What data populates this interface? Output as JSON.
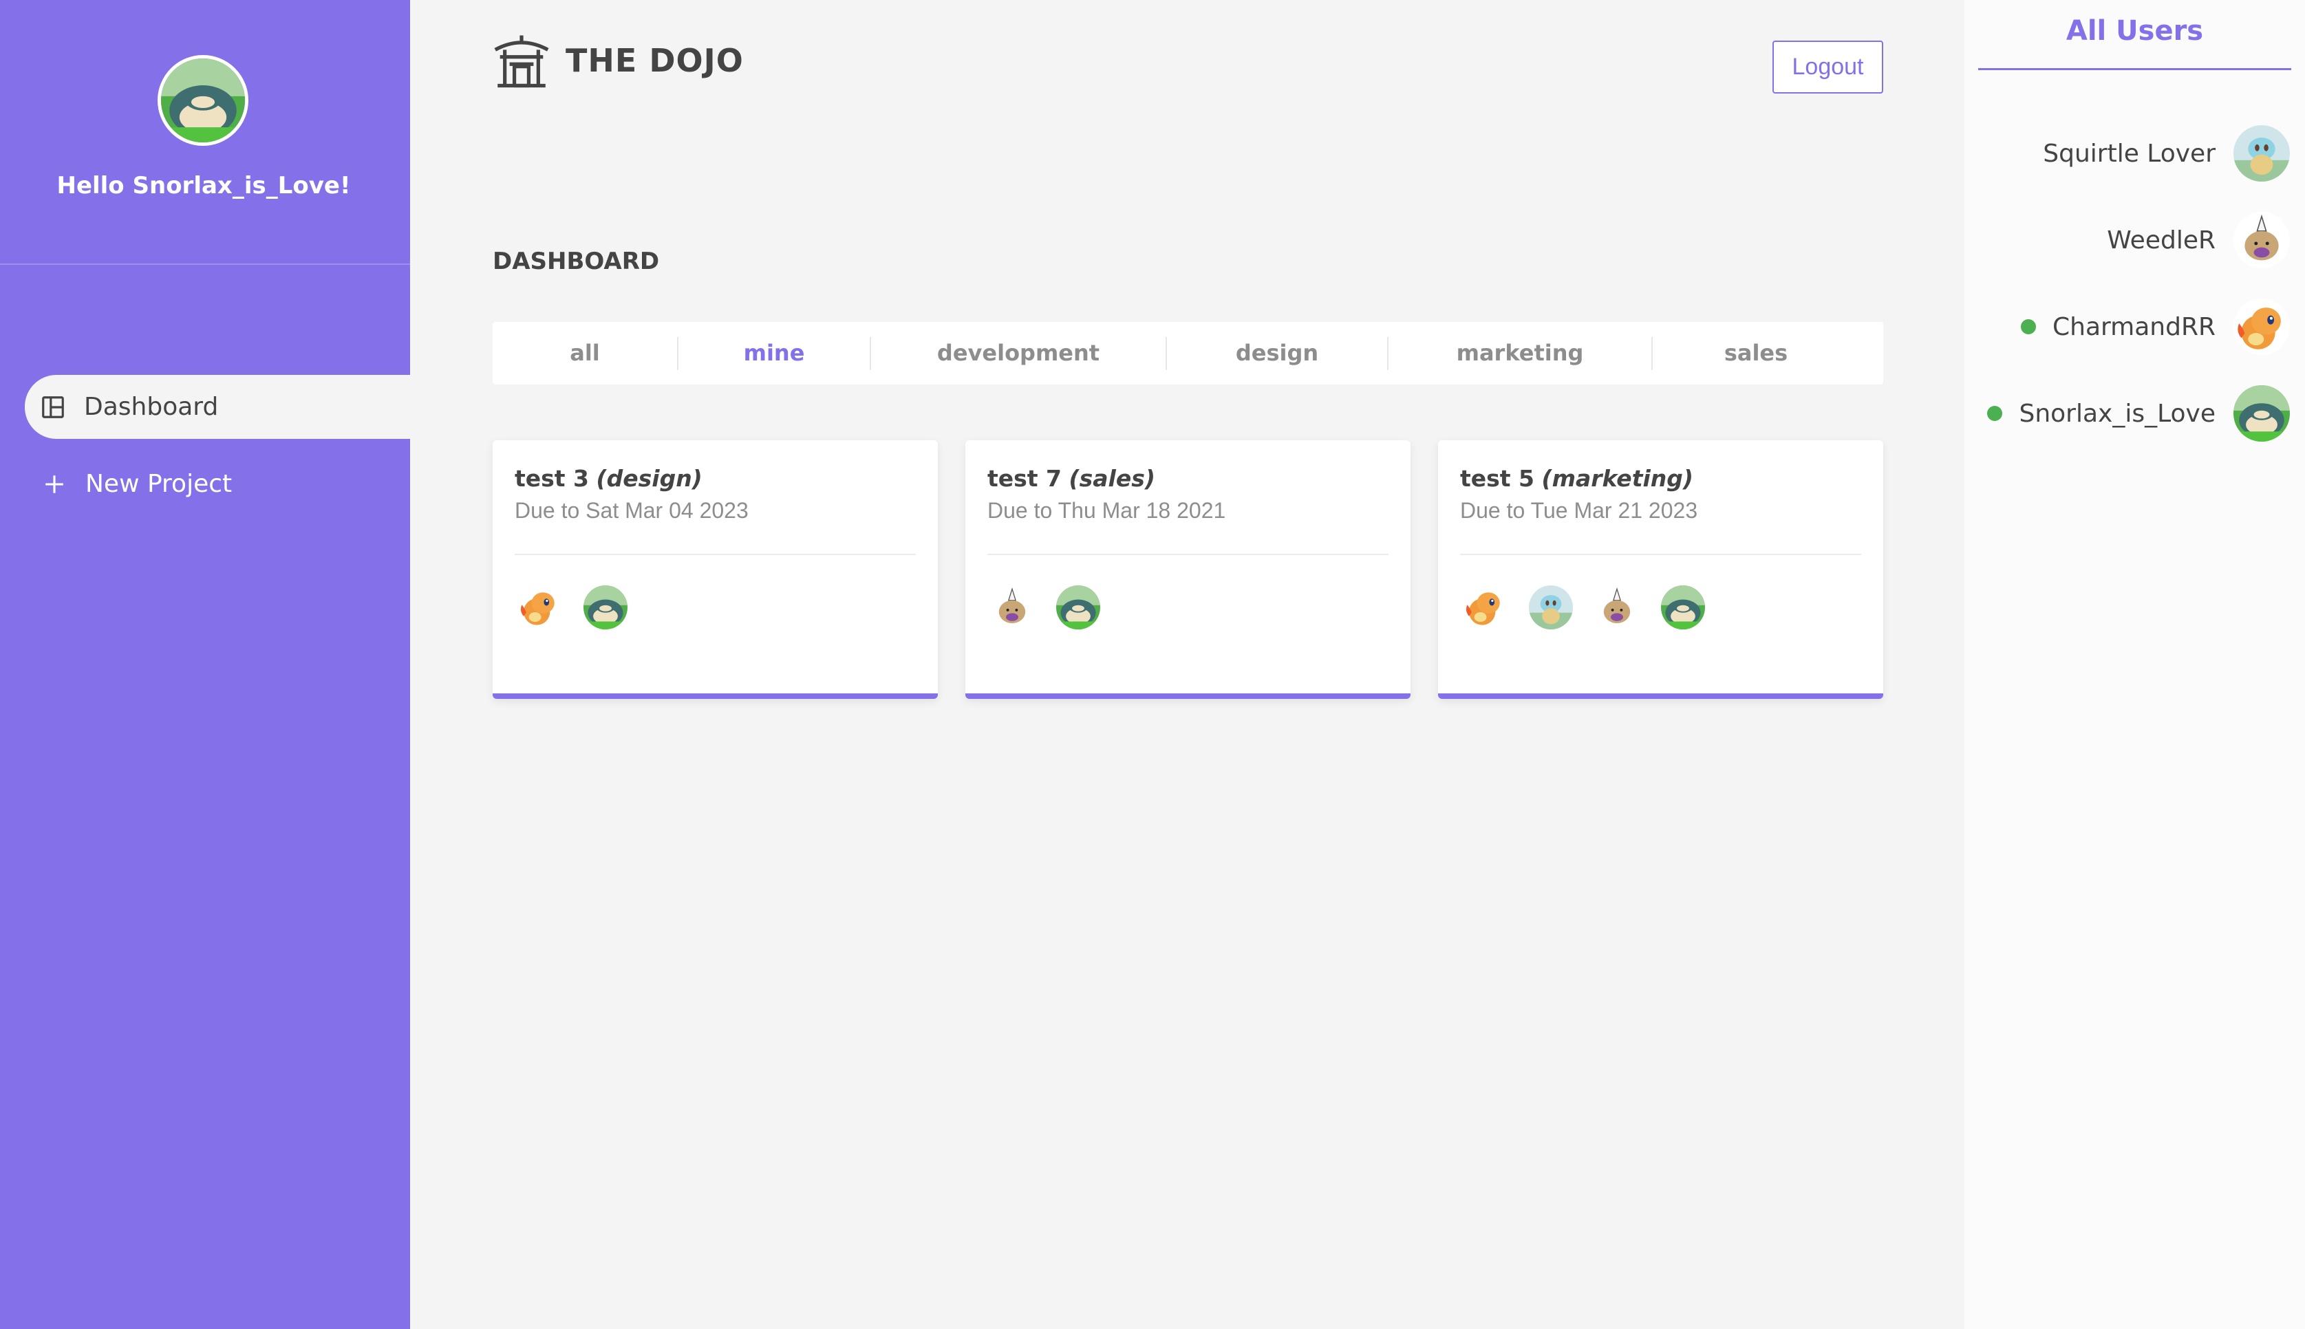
{
  "sidebar": {
    "greeting": "Hello Snorlax_is_Love!",
    "avatar_icon": "snorlax-avatar-icon",
    "nav": [
      {
        "label": "Dashboard",
        "icon": "dashboard-icon",
        "active": true
      },
      {
        "label": "New Project",
        "icon": "plus-icon",
        "active": false
      }
    ]
  },
  "header": {
    "brand": "THE DOJO",
    "brand_icon": "temple-icon",
    "logout_label": "Logout"
  },
  "main": {
    "title": "DASHBOARD",
    "filters": [
      {
        "label": "all",
        "active": false
      },
      {
        "label": "mine",
        "active": true
      },
      {
        "label": "development",
        "active": false
      },
      {
        "label": "design",
        "active": false
      },
      {
        "label": "marketing",
        "active": false
      },
      {
        "label": "sales",
        "active": false
      }
    ],
    "projects": [
      {
        "name": "test 3",
        "category": "(design)",
        "due": "Due to Sat Mar 04 2023",
        "assignees": [
          "charmander",
          "snorlax"
        ]
      },
      {
        "name": "test 7",
        "category": "(sales)",
        "due": "Due to Thu Mar 18 2021",
        "assignees": [
          "weedle",
          "snorlax"
        ]
      },
      {
        "name": "test 5",
        "category": "(marketing)",
        "due": "Due to Tue Mar 21 2023",
        "assignees": [
          "charmander",
          "squirtle",
          "weedle",
          "snorlax"
        ]
      }
    ]
  },
  "users_panel": {
    "title": "All Users",
    "users": [
      {
        "name": "Squirtle Lover",
        "online": false,
        "avatar": "squirtle"
      },
      {
        "name": "WeedleR",
        "online": false,
        "avatar": "weedle"
      },
      {
        "name": "CharmandRR",
        "online": true,
        "avatar": "charmander"
      },
      {
        "name": "Snorlax_is_Love",
        "online": true,
        "avatar": "snorlax"
      }
    ]
  },
  "colors": {
    "accent": "#8470e8",
    "background": "#f4f4f4",
    "online": "#4caf50",
    "text": "#444444",
    "muted": "#8d8d8d"
  }
}
